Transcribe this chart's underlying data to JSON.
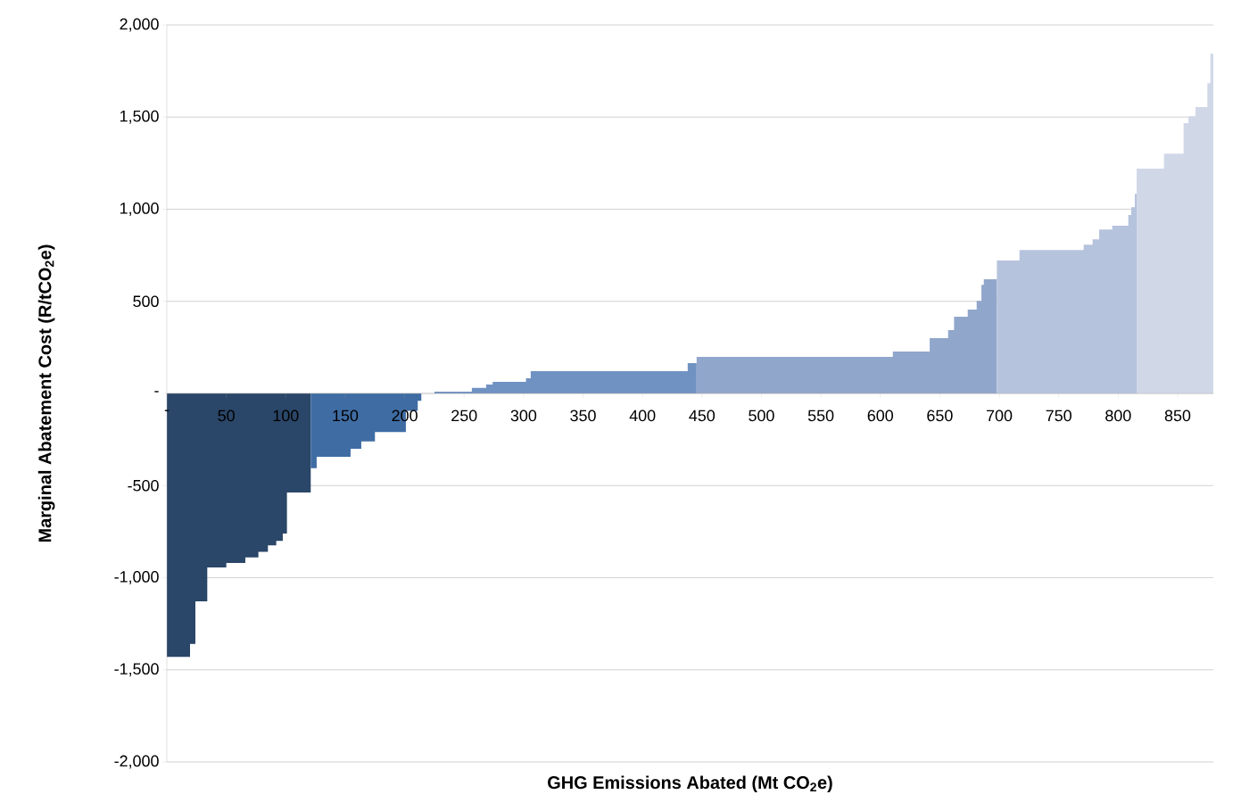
{
  "chart_data": {
    "type": "area",
    "xlabel": "GHG Emissions Abated (Mt CO$_{2}$e)",
    "ylabel": "Marginal Abatement Cost (R/tCO$_{2}$e)",
    "xlim": [
      0,
      880
    ],
    "xticks": [
      {
        "value": 0,
        "label": "-"
      },
      50,
      100,
      150,
      200,
      250,
      300,
      350,
      400,
      450,
      500,
      550,
      600,
      650,
      700,
      750,
      800,
      850
    ],
    "ylim": [
      -2000,
      2000
    ],
    "yticks": [
      {
        "value": -2000,
        "label": "-2,000"
      },
      {
        "value": -1500,
        "label": "-1,500"
      },
      {
        "value": -1000,
        "label": "-1,000"
      },
      -500,
      {
        "value": 0,
        "label": "-"
      },
      500,
      {
        "value": 1000,
        "label": "1,000"
      },
      {
        "value": 1500,
        "label": "1,500"
      },
      {
        "value": 2000,
        "label": "2,000"
      }
    ],
    "grid": "y",
    "series": [
      {
        "color": "#2a4668",
        "x": [
          0,
          19.5,
          19.5,
          24,
          24,
          34,
          34,
          50,
          50,
          66,
          66,
          77,
          77,
          85,
          85,
          92,
          92,
          97.5,
          97.5,
          101,
          101,
          121
        ],
        "values": [
          -1430,
          -1430,
          -1360,
          -1360,
          -1128,
          -1128,
          -944,
          -944,
          -920,
          -920,
          -890,
          -890,
          -860,
          -860,
          -825,
          -825,
          -800,
          -800,
          -760,
          -760,
          -537,
          -537
        ]
      },
      {
        "color": "#3f6ca3",
        "x": [
          121,
          126,
          126,
          154.5,
          154.5,
          163.5,
          163.5,
          175,
          175,
          201,
          201,
          211,
          211,
          214
        ],
        "values": [
          -406,
          -406,
          -344,
          -344,
          -300,
          -300,
          -260,
          -260,
          -210,
          -210,
          -95,
          -95,
          -40,
          -40
        ]
      },
      {
        "color": "#7092c2",
        "x": [
          225,
          256.5,
          256.5,
          268.5,
          268.5,
          274,
          274,
          302,
          302,
          306,
          306,
          438,
          438,
          445.5
        ],
        "values": [
          10,
          10,
          30,
          30,
          48,
          48,
          63,
          63,
          82,
          82,
          121,
          121,
          165,
          165
        ]
      },
      {
        "color": "#91a6cb",
        "x": [
          445.5,
          610.5,
          610.5,
          641.5,
          641.5,
          657,
          657,
          662,
          662,
          673.5,
          673.5,
          681,
          681,
          685,
          685,
          687,
          687,
          698
        ],
        "values": [
          198,
          198,
          228,
          228,
          300,
          300,
          344,
          344,
          416,
          416,
          455,
          455,
          503,
          503,
          590,
          590,
          620,
          620
        ]
      },
      {
        "color": "#b6c3dd",
        "x": [
          698,
          717,
          717,
          771,
          771,
          778.5,
          778.5,
          784,
          784,
          795,
          795,
          808.5,
          808.5,
          811,
          811,
          814,
          814,
          815.5
        ],
        "values": [
          721,
          721,
          779,
          779,
          808,
          808,
          837,
          837,
          890,
          890,
          910,
          910,
          968,
          968,
          1011,
          1011,
          1084,
          1084
        ]
      },
      {
        "color": "#d0d8e8",
        "x": [
          815.5,
          838.5,
          838.5,
          855,
          855,
          859,
          859,
          865,
          865,
          875,
          875,
          877.5,
          877.5,
          880
        ],
        "values": [
          1220,
          1220,
          1302,
          1302,
          1467,
          1467,
          1505,
          1505,
          1554,
          1554,
          1684,
          1684,
          1844,
          1844
        ]
      }
    ]
  }
}
